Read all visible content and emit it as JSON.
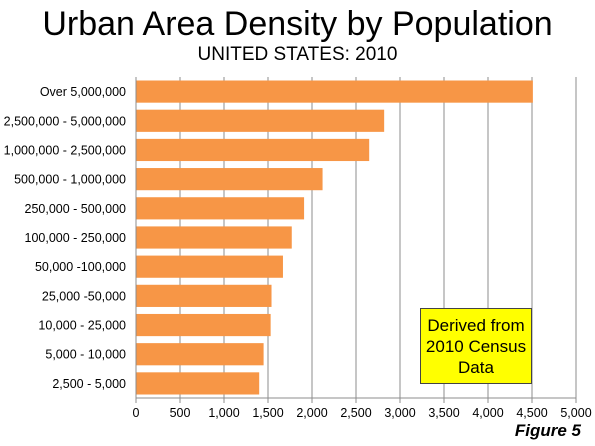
{
  "chart_data": {
    "type": "bar",
    "orientation": "horizontal",
    "title": "Urban Area Density by Population",
    "subtitle": "UNITED STATES: 2010",
    "categories": [
      "Over 5,000,000",
      "2,500,000 - 5,000,000",
      "1,000,000 - 2,500,000",
      "500,000 - 1,000,000",
      "250,000 - 500,000",
      "100,000 - 250,000",
      "50,000 -100,000",
      "25,000 -50,000",
      "10,000 - 25,000",
      "5,000 - 10,000",
      "2,500 - 5,000"
    ],
    "values": [
      4510,
      2820,
      2650,
      2120,
      1910,
      1770,
      1670,
      1540,
      1530,
      1450,
      1400
    ],
    "x_ticks": [
      "0",
      "500",
      "1,000",
      "1,500",
      "2,000",
      "2,500",
      "3,000",
      "3,500",
      "4,000",
      "4,500",
      "5,000"
    ],
    "xlim": [
      0,
      5000
    ],
    "grid": "vertical",
    "bar_color": "#f79646",
    "annotation": "Derived from\n2010 Census\nData",
    "annotation_color": "#ffff00",
    "figure_label": "Figure 5"
  }
}
